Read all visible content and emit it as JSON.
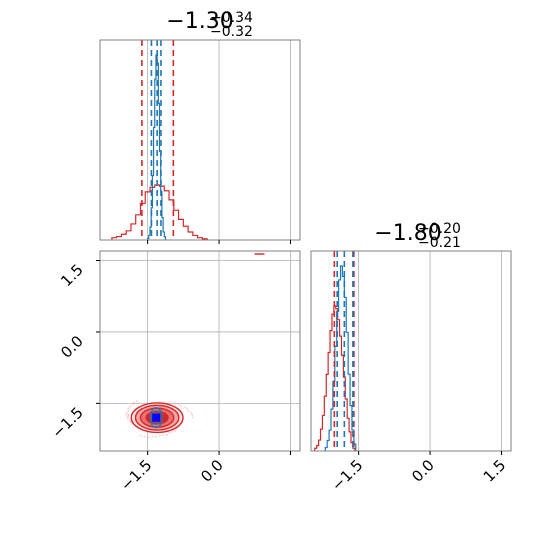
{
  "chart_data": {
    "type": "corner",
    "parameters": [
      {
        "title": "−1.30",
        "upper_err": "+0.34",
        "lower_err": "−0.32",
        "median": -1.3,
        "interval": [
          -1.62,
          -0.96
        ],
        "range": [
          -2.5,
          1.7
        ]
      },
      {
        "title": "−1.80",
        "upper_err": "+0.20",
        "lower_err": "−0.21",
        "median": -1.8,
        "interval": [
          -2.01,
          -1.6
        ],
        "range": [
          -2.5,
          1.7
        ]
      }
    ],
    "ticks": [
      {
        "value": -1.5,
        "label": "−1.5"
      },
      {
        "value": 0.0,
        "label": "0.0"
      },
      {
        "value": 1.5,
        "label": "1.5"
      }
    ],
    "series": [
      {
        "color": "#d62728",
        "marginal_x": {
          "bin_start": -2.25,
          "bin_width": 0.1,
          "counts": [
            2,
            3,
            5,
            8,
            14,
            22,
            32,
            42,
            46,
            48,
            47,
            43,
            35,
            26,
            18,
            12,
            7,
            4,
            2,
            1
          ]
        },
        "marginal_y": {
          "bin_start": -2.42,
          "bin_width": 0.04,
          "counts": [
            1,
            2,
            4,
            8,
            13,
            20,
            28,
            36,
            44,
            50,
            53,
            52,
            48,
            42,
            35,
            27,
            19,
            12,
            7,
            3,
            1
          ]
        },
        "quantiles_x": [
          -1.62,
          -0.96
        ],
        "quantiles_y": [
          -2.01,
          -1.6
        ],
        "center": [
          -1.3,
          -1.8
        ],
        "spread": [
          0.35,
          0.2
        ],
        "point": [
          0.85,
          1.7
        ]
      },
      {
        "color": "#1f77b4",
        "marginal_x": {
          "bin_start": -1.5,
          "bin_width": 0.025,
          "counts": [
            1,
            3,
            8,
            20,
            40,
            70,
            100,
            115,
            110,
            85,
            55,
            30,
            14,
            5,
            2
          ]
        },
        "marginal_y": {
          "bin_start": -2.2,
          "bin_width": 0.04,
          "counts": [
            1,
            3,
            6,
            12,
            20,
            30,
            40,
            49,
            53,
            50,
            44,
            34,
            22,
            13,
            6,
            2
          ]
        },
        "quantiles_x": [
          -1.42,
          -1.22
        ],
        "quantiles_y": [
          -1.95,
          -1.62
        ],
        "center": [
          -1.32,
          -1.8
        ],
        "spread": [
          0.08,
          0.13
        ]
      }
    ],
    "markers": [
      {
        "color": "#0000ff",
        "x": -1.32,
        "y": -1.8
      }
    ],
    "grid": true
  }
}
